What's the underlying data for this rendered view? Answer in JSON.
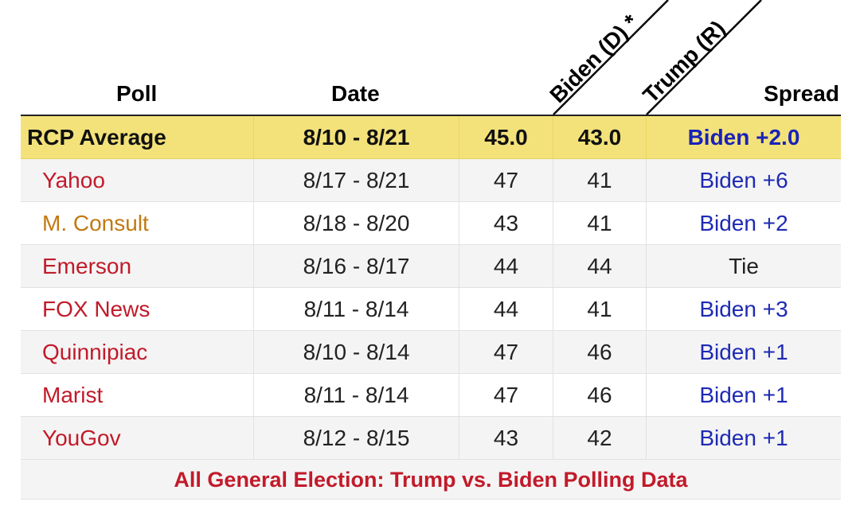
{
  "header": {
    "poll": "Poll",
    "date": "Date",
    "dem": "Biden (D) *",
    "rep": "Trump (R)",
    "spread": "Spread"
  },
  "average": {
    "poll": "RCP Average",
    "date": "8/10 - 8/21",
    "dem": "45.0",
    "rep": "43.0",
    "spread": "Biden +2.0"
  },
  "polls": [
    {
      "poll": "Yahoo",
      "date": "8/17 - 8/21",
      "dem": "47",
      "rep": "41",
      "spread": "Biden +6",
      "poll_color": "#c21a2a",
      "spread_color": "#1e2ab4"
    },
    {
      "poll": "M. Consult",
      "date": "8/18 - 8/20",
      "dem": "43",
      "rep": "41",
      "spread": "Biden +2",
      "poll_color": "#c27a12",
      "spread_color": "#1e2ab4"
    },
    {
      "poll": "Emerson",
      "date": "8/16 - 8/17",
      "dem": "44",
      "rep": "44",
      "spread": "Tie",
      "poll_color": "#c21a2a",
      "spread_color": "#222222"
    },
    {
      "poll": "FOX News",
      "date": "8/11 - 8/14",
      "dem": "44",
      "rep": "41",
      "spread": "Biden +3",
      "poll_color": "#c21a2a",
      "spread_color": "#1e2ab4"
    },
    {
      "poll": "Quinnipiac",
      "date": "8/10 - 8/14",
      "dem": "47",
      "rep": "46",
      "spread": "Biden +1",
      "poll_color": "#c21a2a",
      "spread_color": "#1e2ab4"
    },
    {
      "poll": "Marist",
      "date": "8/11 - 8/14",
      "dem": "47",
      "rep": "46",
      "spread": "Biden +1",
      "poll_color": "#c21a2a",
      "spread_color": "#1e2ab4"
    },
    {
      "poll": "YouGov",
      "date": "8/12 - 8/15",
      "dem": "43",
      "rep": "42",
      "spread": "Biden +1",
      "poll_color": "#c21a2a",
      "spread_color": "#1e2ab4"
    }
  ],
  "footer": {
    "link": "All General Election: Trump vs. Biden Polling Data"
  },
  "colors": {
    "average_bg": "#f3e27a",
    "average_spread": "#1a22b8",
    "alt_row_bg": "#f4f4f4"
  }
}
